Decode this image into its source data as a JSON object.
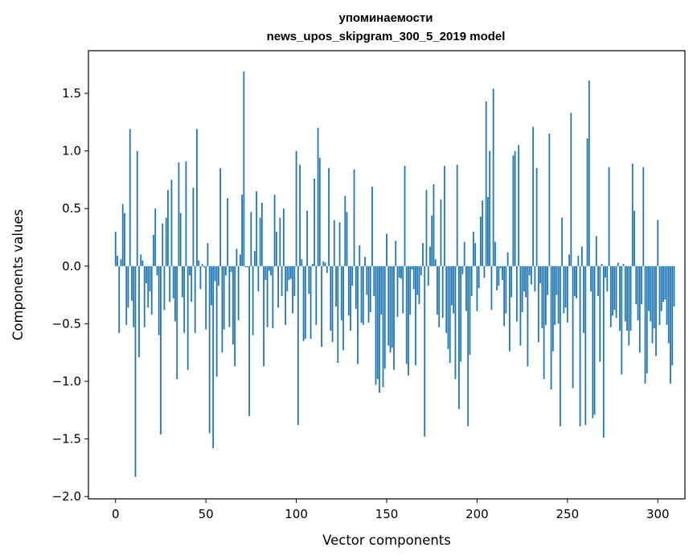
{
  "chart_data": {
    "type": "bar",
    "title": "упоминаемости",
    "subtitle": "news_upos_skipgram_300_5_2019 model",
    "xlabel": "Vector components",
    "ylabel": "Components values",
    "xlim": [
      -15,
      315
    ],
    "ylim": [
      -2.02,
      1.87
    ],
    "xticks": [
      0,
      50,
      100,
      150,
      200,
      250,
      300
    ],
    "yticks": [
      -2.0,
      -1.5,
      -1.0,
      -0.5,
      0.0,
      0.5,
      1.0,
      1.5
    ],
    "grid": false,
    "bar_color": "#1f77b4",
    "values": [
      0.3,
      0.09,
      -0.58,
      0.06,
      0.54,
      0.46,
      -0.51,
      -0.36,
      1.19,
      -0.3,
      -0.53,
      -1.83,
      1.0,
      -0.79,
      0.1,
      0.05,
      -0.53,
      -0.15,
      -0.36,
      -0.22,
      -0.42,
      0.27,
      0.5,
      -0.08,
      -0.6,
      -1.46,
      0.37,
      -0.38,
      0.42,
      0.66,
      -0.31,
      0.75,
      -0.28,
      -0.48,
      -0.98,
      0.9,
      0.46,
      -0.27,
      -0.58,
      0.91,
      -0.9,
      -0.08,
      -0.31,
      0.68,
      -0.58,
      1.19,
      0.05,
      -0.2,
      0.02,
      -0.01,
      -0.55,
      0.2,
      -1.45,
      -0.34,
      -1.58,
      -0.13,
      -0.96,
      -0.17,
      0.85,
      -0.75,
      -0.55,
      -0.08,
      0.59,
      -0.53,
      -0.05,
      -0.68,
      -0.87,
      0.15,
      -0.47,
      0.1,
      0.62,
      1.69,
      -0.01,
      -0.01,
      -1.3,
      0.47,
      -0.6,
      0.13,
      0.65,
      -0.22,
      0.42,
      0.55,
      -0.87,
      -0.12,
      -0.53,
      -0.04,
      -0.08,
      -0.54,
      0.62,
      0.3,
      -0.36,
      0.42,
      -0.26,
      0.5,
      -0.51,
      -0.22,
      -0.12,
      -0.11,
      -0.41,
      -0.26,
      1.0,
      -1.38,
      0.88,
      0.06,
      -0.65,
      -0.63,
      0.48,
      -0.24,
      -0.63,
      0.02,
      0.76,
      -0.51,
      1.2,
      0.94,
      -0.7,
      0.04,
      0.03,
      -0.06,
      0.85,
      -0.56,
      -0.66,
      0.4,
      -0.35,
      -0.84,
      0.38,
      -0.47,
      -0.73,
      0.61,
      0.47,
      -0.43,
      -0.56,
      -0.17,
      0.84,
      -0.37,
      -0.85,
      0.18,
      -0.49,
      -0.51,
      0.08,
      -0.25,
      -0.49,
      -0.4,
      0.69,
      -0.26,
      -1.03,
      -0.98,
      -1.1,
      -0.42,
      -1.05,
      -0.89,
      0.28,
      -0.69,
      -0.75,
      -0.71,
      -0.9,
      0.22,
      -0.44,
      -0.1,
      -0.11,
      -0.41,
      0.87,
      -0.85,
      -0.95,
      -0.42,
      -0.03,
      -0.2,
      -0.86,
      -0.25,
      -0.33,
      -0.08,
      0.2,
      -1.48,
      0.66,
      -0.17,
      0.17,
      0.44,
      0.71,
      0.06,
      -0.42,
      -0.53,
      0.58,
      -0.45,
      0.87,
      -0.58,
      -0.72,
      -0.84,
      -0.34,
      -0.41,
      -0.98,
      0.88,
      -1.24,
      -0.83,
      -0.07,
      0.21,
      -0.39,
      -1.39,
      -0.77,
      -0.26,
      0.3,
      0.2,
      -0.39,
      -0.19,
      0.43,
      0.57,
      -0.1,
      1.43,
      0.6,
      1.0,
      -0.38,
      1.54,
      0.21,
      -0.21,
      -0.17,
      -0.02,
      -0.12,
      -0.52,
      -0.41,
      0.12,
      -0.74,
      -0.27,
      0.96,
      1.0,
      -0.48,
      1.05,
      -0.69,
      -0.4,
      -0.22,
      -0.27,
      -0.87,
      -0.08,
      -0.16,
      1.21,
      -0.22,
      0.85,
      -0.66,
      -0.15,
      -0.54,
      -0.98,
      -0.51,
      -0.25,
      1.15,
      -1.07,
      -0.74,
      -0.51,
      -0.25,
      -0.5,
      -1.39,
      0.42,
      -0.41,
      -0.36,
      -0.49,
      0.1,
      1.33,
      -1.06,
      -0.26,
      -0.28,
      0.09,
      -1.39,
      0.17,
      -0.58,
      -1.38,
      1.11,
      1.61,
      -0.22,
      -1.32,
      -1.29,
      0.26,
      -0.26,
      -0.83,
      0.02,
      -1.49,
      -0.1,
      -0.22,
      0.86,
      -0.53,
      -0.43,
      -0.38,
      -0.45,
      0.03,
      -0.56,
      -0.94,
      0.02,
      -0.48,
      -0.56,
      -0.69,
      -0.56,
      0.89,
      0.48,
      -0.33,
      -0.47,
      -0.75,
      -0.33,
      0.86,
      -1.02,
      -0.93,
      -0.39,
      -0.48,
      -0.67,
      -0.54,
      -0.78,
      0.4,
      -0.51,
      -0.39,
      -0.31,
      -0.29,
      -0.51,
      -0.67,
      -1.02,
      -0.86,
      -0.35
    ]
  }
}
